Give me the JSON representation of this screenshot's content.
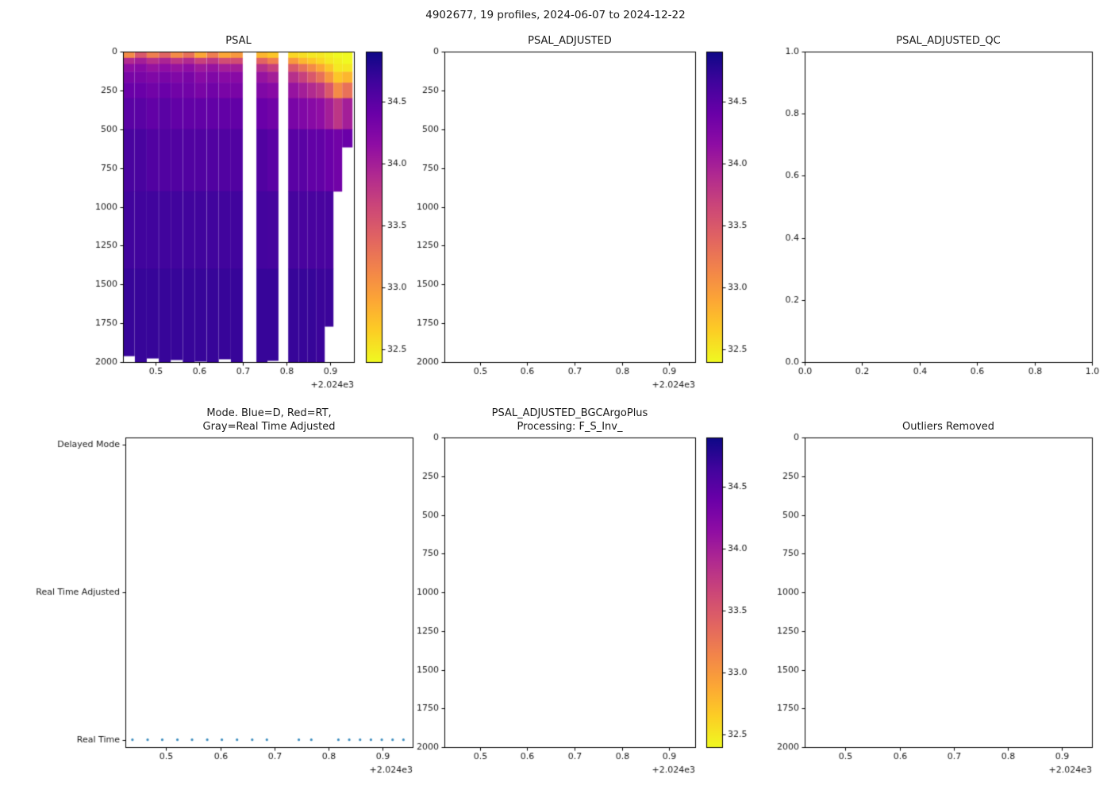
{
  "figure": {
    "title": "4902677, 19 profiles, 2024-06-07 to 2024-12-22",
    "background": "#ffffff"
  },
  "colormap": {
    "stops": [
      "#0d0887",
      "#41049d",
      "#6a00a8",
      "#8f0da4",
      "#b12a90",
      "#cc4778",
      "#e16462",
      "#f2844b",
      "#fca636",
      "#fcce25",
      "#f0f921"
    ],
    "vmin": 32.4,
    "vmax": 34.9,
    "tick_values": [
      34.5,
      34.0,
      33.5,
      33.0,
      32.5
    ],
    "tick_labels": [
      "34.5",
      "34.0",
      "33.5",
      "33.0",
      "32.5"
    ]
  },
  "chart_data": [
    {
      "id": "psal",
      "type": "heatmap",
      "title": "PSAL",
      "xlim": [
        2024.425,
        2024.955
      ],
      "ylim": [
        0,
        2000
      ],
      "xticks": [
        2024.5,
        2024.6,
        2024.7,
        2024.8,
        2024.9
      ],
      "xtick_labels": [
        "0.5",
        "0.6",
        "0.7",
        "0.8",
        "0.9"
      ],
      "x_offset_label": "+2.024e3",
      "yticks": [
        0,
        250,
        500,
        750,
        1000,
        1250,
        1500,
        1750,
        2000
      ],
      "ytick_labels": [
        "0",
        "250",
        "500",
        "750",
        "1000",
        "1250",
        "1500",
        "1750",
        "2000"
      ],
      "colorbar": true,
      "profile_times": [
        2024.438,
        2024.466,
        2024.493,
        2024.521,
        2024.548,
        2024.576,
        2024.603,
        2024.631,
        2024.659,
        2024.686,
        2024.745,
        2024.768,
        2024.818,
        2024.838,
        2024.858,
        2024.878,
        2024.898,
        2024.918,
        2024.938
      ],
      "depth_band_edges": [
        0,
        40,
        80,
        130,
        200,
        300,
        500,
        900,
        1400,
        2000
      ],
      "profile_max_depth": [
        1960,
        2000,
        1975,
        2000,
        1985,
        2000,
        1995,
        2000,
        1980,
        2000,
        2000,
        1990,
        2000,
        2000,
        2000,
        2000,
        1770,
        920,
        615
      ],
      "values": [
        [
          33.1,
          33.9,
          34.15,
          34.3,
          34.4,
          34.5,
          34.6,
          34.65,
          34.7
        ],
        [
          33.5,
          34.0,
          34.2,
          34.3,
          34.4,
          34.5,
          34.6,
          34.65,
          34.7
        ],
        [
          33.2,
          33.85,
          34.1,
          34.25,
          34.35,
          34.45,
          34.55,
          34.65,
          34.7
        ],
        [
          33.4,
          33.95,
          34.15,
          34.3,
          34.4,
          34.5,
          34.55,
          34.65,
          34.7
        ],
        [
          33.1,
          33.8,
          34.1,
          34.25,
          34.35,
          34.45,
          34.55,
          34.65,
          34.7
        ],
        [
          33.3,
          33.9,
          34.15,
          34.3,
          34.35,
          34.45,
          34.55,
          34.65,
          34.7
        ],
        [
          32.9,
          33.7,
          34.05,
          34.2,
          34.3,
          34.45,
          34.55,
          34.65,
          34.7
        ],
        [
          33.2,
          33.8,
          34.1,
          34.25,
          34.35,
          34.45,
          34.55,
          34.65,
          34.7
        ],
        [
          32.9,
          33.6,
          34.0,
          34.2,
          34.3,
          34.45,
          34.55,
          34.65,
          34.7
        ],
        [
          33.0,
          33.6,
          34.0,
          34.2,
          34.3,
          34.45,
          34.55,
          34.65,
          34.7
        ],
        [
          32.8,
          33.4,
          33.85,
          34.1,
          34.25,
          34.4,
          34.55,
          34.63,
          34.7
        ],
        [
          32.7,
          33.2,
          33.7,
          34.0,
          34.2,
          34.35,
          34.5,
          34.62,
          34.7
        ],
        [
          32.6,
          33.0,
          33.5,
          33.85,
          34.1,
          34.3,
          34.5,
          34.62,
          34.7
        ],
        [
          32.55,
          32.8,
          33.3,
          33.7,
          34.0,
          34.25,
          34.5,
          34.6,
          34.7
        ],
        [
          32.5,
          32.7,
          33.1,
          33.5,
          33.9,
          34.2,
          34.45,
          34.6,
          34.7
        ],
        [
          32.5,
          32.6,
          32.9,
          33.3,
          33.8,
          34.15,
          34.45,
          34.6,
          34.68
        ],
        [
          32.45,
          32.5,
          32.7,
          33.0,
          33.5,
          34.0,
          34.4,
          34.6,
          34.68
        ],
        [
          32.4,
          32.45,
          32.5,
          32.7,
          33.1,
          33.8,
          34.35,
          null,
          null
        ],
        [
          32.35,
          32.4,
          32.5,
          32.8,
          33.3,
          34.0,
          34.4,
          null,
          null
        ]
      ]
    },
    {
      "id": "psal_adjusted",
      "type": "empty",
      "title": "PSAL_ADJUSTED",
      "xlim": [
        2024.425,
        2024.955
      ],
      "ylim": [
        0,
        2000
      ],
      "xticks": [
        2024.5,
        2024.6,
        2024.7,
        2024.8,
        2024.9
      ],
      "xtick_labels": [
        "0.5",
        "0.6",
        "0.7",
        "0.8",
        "0.9"
      ],
      "x_offset_label": "+2.024e3",
      "yticks": [
        0,
        250,
        500,
        750,
        1000,
        1250,
        1500,
        1750,
        2000
      ],
      "ytick_labels": [
        "0",
        "250",
        "500",
        "750",
        "1000",
        "1250",
        "1500",
        "1750",
        "2000"
      ],
      "colorbar": true
    },
    {
      "id": "psal_adjusted_qc",
      "type": "empty",
      "title": "PSAL_ADJUSTED_QC",
      "xlim": [
        0,
        1
      ],
      "ylim": [
        1,
        0
      ],
      "xticks": [
        0,
        0.2,
        0.4,
        0.6,
        0.8,
        1.0
      ],
      "xtick_labels": [
        "0.0",
        "0.2",
        "0.4",
        "0.6",
        "0.8",
        "1.0"
      ],
      "yticks": [
        1.0,
        0.8,
        0.6,
        0.4,
        0.2,
        0.0
      ],
      "ytick_labels": [
        "1.0",
        "0.8",
        "0.6",
        "0.4",
        "0.2",
        "0.0"
      ],
      "colorbar": false
    },
    {
      "id": "mode",
      "type": "scatter",
      "title": "Mode. Blue=D, Red=RT,\nGray=Real Time Adjusted",
      "xlim": [
        2024.425,
        2024.955
      ],
      "ylim": [
        2.05,
        -0.05
      ],
      "xticks": [
        2024.5,
        2024.6,
        2024.7,
        2024.8,
        2024.9
      ],
      "xtick_labels": [
        "0.5",
        "0.6",
        "0.7",
        "0.8",
        "0.9"
      ],
      "x_offset_label": "+2.024e3",
      "yticks": [
        2,
        1,
        0
      ],
      "ytick_labels": [
        "Delayed Mode",
        "Real Time Adjusted",
        "Real Time"
      ],
      "colorbar": false,
      "points": {
        "x": [
          2024.438,
          2024.466,
          2024.493,
          2024.521,
          2024.548,
          2024.576,
          2024.603,
          2024.631,
          2024.659,
          2024.686,
          2024.745,
          2024.768,
          2024.818,
          2024.838,
          2024.858,
          2024.878,
          2024.898,
          2024.918,
          2024.938
        ],
        "y": 0,
        "category": "Real Time",
        "color": "#3f8fc0",
        "radius": 1.6
      }
    },
    {
      "id": "psal_adjusted_bgc",
      "type": "empty",
      "title": "PSAL_ADJUSTED_BGCArgoPlus\nProcessing: F_S_Inv_",
      "xlim": [
        2024.425,
        2024.955
      ],
      "ylim": [
        0,
        2000
      ],
      "xticks": [
        2024.5,
        2024.6,
        2024.7,
        2024.8,
        2024.9
      ],
      "xtick_labels": [
        "0.5",
        "0.6",
        "0.7",
        "0.8",
        "0.9"
      ],
      "x_offset_label": "+2.024e3",
      "yticks": [
        0,
        250,
        500,
        750,
        1000,
        1250,
        1500,
        1750,
        2000
      ],
      "ytick_labels": [
        "0",
        "250",
        "500",
        "750",
        "1000",
        "1250",
        "1500",
        "1750",
        "2000"
      ],
      "colorbar": true
    },
    {
      "id": "outliers_removed",
      "type": "empty",
      "title": "Outliers Removed",
      "xlim": [
        2024.425,
        2024.955
      ],
      "ylim": [
        0,
        2000
      ],
      "xticks": [
        2024.5,
        2024.6,
        2024.7,
        2024.8,
        2024.9
      ],
      "xtick_labels": [
        "0.5",
        "0.6",
        "0.7",
        "0.8",
        "0.9"
      ],
      "x_offset_label": "+2.024e3",
      "yticks": [
        0,
        250,
        500,
        750,
        1000,
        1250,
        1500,
        1750,
        2000
      ],
      "ytick_labels": [
        "0",
        "250",
        "500",
        "750",
        "1000",
        "1250",
        "1500",
        "1750",
        "2000"
      ],
      "colorbar": false
    }
  ]
}
